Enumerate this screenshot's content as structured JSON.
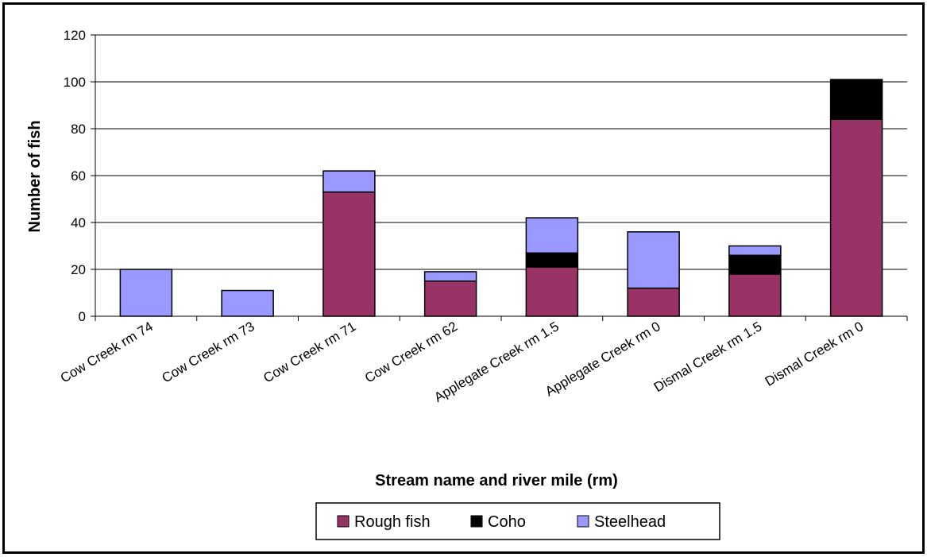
{
  "chart_data": {
    "type": "bar",
    "stacked": true,
    "title": "",
    "xlabel": "Stream name and river mile (rm)",
    "ylabel": "Number of fish",
    "ylim": [
      0,
      120
    ],
    "yticks": [
      0,
      20,
      40,
      60,
      80,
      100,
      120
    ],
    "grid": true,
    "legend_position": "bottom",
    "categories": [
      "Cow Creek rm 74",
      "Cow Creek rm 73",
      "Cow Creek rm 71",
      "Cow Creek rm 62",
      "Applegate Creek rm 1.5",
      "Applegate Creek rm 0",
      "Dismal Creek rm 1.5",
      "Dismal Creek rm 0"
    ],
    "series": [
      {
        "name": "Rough fish",
        "color": "#993366",
        "values": [
          0,
          0,
          53,
          15,
          21,
          12,
          18,
          84
        ]
      },
      {
        "name": "Coho",
        "color": "#000000",
        "values": [
          0,
          0,
          0,
          0,
          6,
          0,
          8,
          17
        ]
      },
      {
        "name": "Steelhead",
        "color": "#9999ff",
        "values": [
          20,
          11,
          9,
          4,
          15,
          24,
          4,
          0
        ]
      }
    ]
  }
}
